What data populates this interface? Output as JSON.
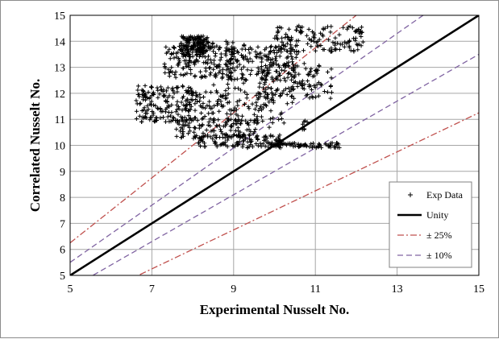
{
  "chart_data": {
    "type": "scatter",
    "xlabel": "Experimental Nusselt No.",
    "ylabel": "Correlated Nusselt No.",
    "xlim": [
      5,
      15
    ],
    "ylim": [
      5,
      15
    ],
    "xticks": [
      "5",
      "7",
      "9",
      "11",
      "13",
      "15"
    ],
    "yticks": [
      "5",
      "6",
      "7",
      "8",
      "9",
      "10",
      "11",
      "12",
      "13",
      "14",
      "15"
    ],
    "grid": true,
    "legend_position": "bottom-right",
    "series": [
      {
        "name": "Exp Data",
        "kind": "scatter",
        "marker": "+",
        "color": "#000000",
        "clusters": [
          {
            "x": [
              7.7,
              8.4
            ],
            "y": [
              13.4,
              14.2
            ],
            "count": 160
          },
          {
            "x": [
              7.3,
              9.0
            ],
            "y": [
              12.6,
              14.0
            ],
            "count": 180
          },
          {
            "x": [
              8.9,
              10.6
            ],
            "y": [
              12.5,
              13.9
            ],
            "count": 180
          },
          {
            "x": [
              10.0,
              12.2
            ],
            "y": [
              13.6,
              14.6
            ],
            "count": 140
          },
          {
            "x": [
              9.6,
              11.4
            ],
            "y": [
              11.8,
              13.2
            ],
            "count": 90
          },
          {
            "x": [
              6.6,
              8.0
            ],
            "y": [
              10.9,
              12.3
            ],
            "count": 170
          },
          {
            "x": [
              7.8,
              10.2
            ],
            "y": [
              10.9,
              12.2
            ],
            "count": 120
          },
          {
            "x": [
              7.6,
              9.6
            ],
            "y": [
              10.3,
              11.0
            ],
            "count": 110
          },
          {
            "x": [
              8.0,
              10.2
            ],
            "y": [
              9.9,
              10.4
            ],
            "count": 130
          },
          {
            "x": [
              10.0,
              11.6
            ],
            "y": [
              9.9,
              10.1
            ],
            "count": 70
          },
          {
            "x": [
              8.2,
              10.8
            ],
            "y": [
              10.6,
              12.6
            ],
            "count": 70
          }
        ]
      },
      {
        "name": "Unity",
        "kind": "line",
        "slope": 1.0,
        "color": "#000000",
        "dash": "solid"
      },
      {
        "name": "± 25%",
        "kind": "line",
        "slopes": [
          1.25,
          0.75
        ],
        "color": "#c0504d",
        "dash": "dashdot"
      },
      {
        "name": "± 10%",
        "kind": "line",
        "slopes": [
          1.1,
          0.9
        ],
        "color": "#8064a2",
        "dash": "dash"
      }
    ]
  }
}
